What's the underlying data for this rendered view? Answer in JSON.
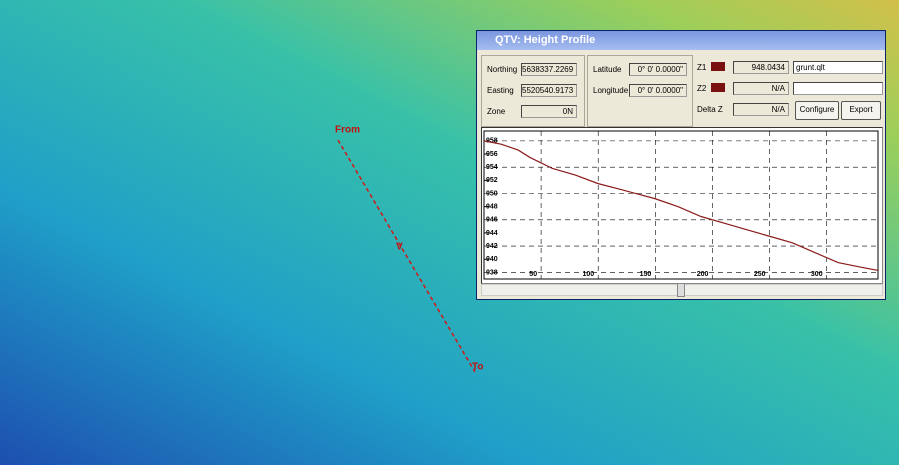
{
  "map": {
    "from_label": "From",
    "to_label": "To",
    "mid_label": "V"
  },
  "window": {
    "title": "QTV: Height Profile",
    "position": [
      {
        "label": "Northing",
        "value": "5638337.2269"
      },
      {
        "label": "Easting",
        "value": "5520540.9173"
      },
      {
        "label": "Zone",
        "value": "0N"
      }
    ],
    "geo": [
      {
        "label": "Latitude",
        "value": "0° 0' 0.0000\""
      },
      {
        "label": "Longitude",
        "value": "0° 0' 0.0000\""
      }
    ],
    "z": [
      {
        "label": "Z1",
        "value": "948.0434",
        "file": "grunt.qlt"
      },
      {
        "label": "Z2",
        "value": "N/A",
        "file": ""
      }
    ],
    "delta": {
      "label": "Delta Z",
      "value": "N/A"
    },
    "buttons": [
      "Configure",
      "Export"
    ]
  },
  "chart_data": {
    "type": "line",
    "color": "#8b1a1a",
    "x": [
      0,
      15,
      30,
      40,
      60,
      80,
      100,
      120,
      150,
      170,
      190,
      210,
      230,
      250,
      270,
      290,
      310,
      330,
      345
    ],
    "values": [
      958,
      957.5,
      956.6,
      955.5,
      953.8,
      952.8,
      951.5,
      950.6,
      949.2,
      948,
      946.5,
      945.5,
      944.5,
      943.5,
      942.5,
      941,
      939.5,
      938.8,
      938.3
    ],
    "xlim": [
      0,
      345
    ],
    "xticks": [
      50,
      100,
      150,
      200,
      250,
      300
    ],
    "ylim": [
      937,
      959.5
    ],
    "yticks": [
      938,
      940,
      942,
      944,
      946,
      948,
      950,
      952,
      954,
      956,
      958
    ],
    "grid": true
  }
}
